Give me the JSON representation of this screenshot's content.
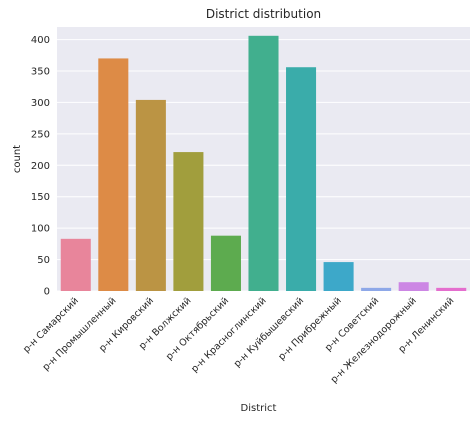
{
  "chart_data": {
    "type": "bar",
    "title": "District distribution",
    "xlabel": "District",
    "ylabel": "count",
    "categories": [
      "р-н Самарский",
      "р-н Промышленный",
      "р-н Кировский",
      "р-н Волжский",
      "р-н Октябрьский",
      "р-н Красноглинский",
      "р-н Куйбышевский",
      "р-н Прибрежный",
      "р-н Советский",
      "р-н Железнодорожный",
      "р-н Ленинский"
    ],
    "values": [
      83,
      370,
      304,
      221,
      88,
      406,
      356,
      46,
      5,
      14,
      5
    ],
    "ylim": [
      0,
      420
    ],
    "yticks": [
      0,
      50,
      100,
      150,
      200,
      250,
      300,
      350,
      400
    ],
    "grid": true,
    "colors": [
      "#e8859b",
      "#dd8b46",
      "#bb9444",
      "#a19e3d",
      "#5dab4f",
      "#41af8e",
      "#3aacaa",
      "#3da8c9",
      "#8ea8e8",
      "#cc86e4",
      "#e46ece"
    ],
    "background": "#eaeaf2",
    "grid_color": "#ffffff"
  }
}
